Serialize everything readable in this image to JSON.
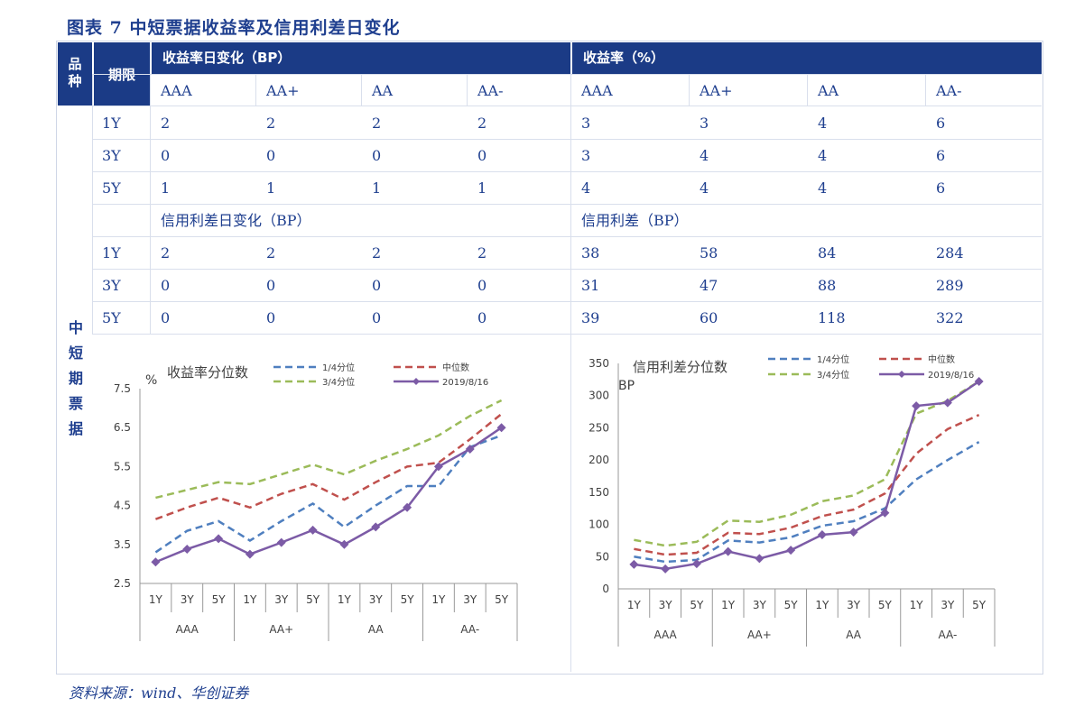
{
  "title": "图表 7   中短票据收益率及信用利差日变化",
  "header": {
    "col1": "品种",
    "col2": "期限",
    "group1": "收益率日变化（BP）",
    "group2": "收益率（%）",
    "ratings": [
      "AAA",
      "AA+",
      "AA",
      "AA-"
    ]
  },
  "row_label": "中短期票据",
  "section2": {
    "group1": "信用利差日变化（BP）",
    "group2": "信用利差（BP）"
  },
  "yield_rows": [
    {
      "term": "1Y",
      "change": [
        "2",
        "2",
        "2",
        "2"
      ],
      "yield": [
        "3",
        "3",
        "4",
        "6"
      ]
    },
    {
      "term": "3Y",
      "change": [
        "0",
        "0",
        "0",
        "0"
      ],
      "yield": [
        "3",
        "4",
        "4",
        "6"
      ]
    },
    {
      "term": "5Y",
      "change": [
        "1",
        "1",
        "1",
        "1"
      ],
      "yield": [
        "4",
        "4",
        "4",
        "6"
      ]
    }
  ],
  "spread_rows": [
    {
      "term": "1Y",
      "change": [
        "2",
        "2",
        "2",
        "2"
      ],
      "spread": [
        "38",
        "58",
        "84",
        "284"
      ]
    },
    {
      "term": "3Y",
      "change": [
        "0",
        "0",
        "0",
        "0"
      ],
      "spread": [
        "31",
        "47",
        "88",
        "289"
      ]
    },
    {
      "term": "5Y",
      "change": [
        "0",
        "0",
        "0",
        "0"
      ],
      "spread": [
        "39",
        "60",
        "118",
        "322"
      ]
    }
  ],
  "source": "资料来源：wind、华创证券",
  "chart_data": [
    {
      "type": "line",
      "title": "收益率分位数",
      "ylabel": "%",
      "ylim": [
        2.5,
        7.5
      ],
      "yticks": [
        "2.5",
        "3.5",
        "4.5",
        "5.5",
        "6.5",
        "7.5"
      ],
      "categories": [
        "1Y",
        "3Y",
        "5Y",
        "1Y",
        "3Y",
        "5Y",
        "1Y",
        "3Y",
        "5Y",
        "1Y",
        "3Y",
        "5Y"
      ],
      "groups": [
        "AAA",
        "AA+",
        "AA",
        "AA-"
      ],
      "legend": {
        "placement": "top-right"
      },
      "series": [
        {
          "name": "1/4分位",
          "color": "#4f7fbf",
          "dash": true,
          "values": [
            3.3,
            3.85,
            4.1,
            3.6,
            4.1,
            4.55,
            3.95,
            4.5,
            5.0,
            5.0,
            6.0,
            6.3
          ]
        },
        {
          "name": "中位数",
          "color": "#c0504d",
          "dash": true,
          "values": [
            4.15,
            4.45,
            4.7,
            4.45,
            4.8,
            5.05,
            4.65,
            5.1,
            5.5,
            5.6,
            6.2,
            6.85
          ]
        },
        {
          "name": "3/4分位",
          "color": "#9bbb59",
          "dash": true,
          "values": [
            4.7,
            4.9,
            5.1,
            5.05,
            5.3,
            5.55,
            5.3,
            5.65,
            5.95,
            6.3,
            6.8,
            7.2
          ]
        },
        {
          "name": "2019/8/16",
          "color": "#7c5ba6",
          "dash": false,
          "markers": true,
          "values": [
            3.05,
            3.38,
            3.65,
            3.25,
            3.55,
            3.87,
            3.5,
            3.95,
            4.45,
            5.5,
            5.95,
            6.5
          ]
        }
      ]
    },
    {
      "type": "line",
      "title": "信用利差分位数",
      "ylabel": "BP",
      "ylim": [
        0,
        350
      ],
      "yticks": [
        "0",
        "50",
        "100",
        "150",
        "200",
        "250",
        "300",
        "350"
      ],
      "categories": [
        "1Y",
        "3Y",
        "5Y",
        "1Y",
        "3Y",
        "5Y",
        "1Y",
        "3Y",
        "5Y",
        "1Y",
        "3Y",
        "5Y"
      ],
      "groups": [
        "AAA",
        "AA+",
        "AA",
        "AA-"
      ],
      "legend": {
        "placement": "top-right"
      },
      "series": [
        {
          "name": "1/4分位",
          "color": "#4f7fbf",
          "dash": true,
          "values": [
            50,
            42,
            45,
            75,
            72,
            80,
            98,
            105,
            125,
            170,
            200,
            228
          ]
        },
        {
          "name": "中位数",
          "color": "#c0504d",
          "dash": true,
          "values": [
            62,
            53,
            56,
            87,
            85,
            95,
            113,
            123,
            148,
            210,
            248,
            270
          ]
        },
        {
          "name": "3/4分位",
          "color": "#9bbb59",
          "dash": true,
          "values": [
            76,
            67,
            73,
            106,
            104,
            115,
            136,
            145,
            170,
            272,
            292,
            322
          ]
        },
        {
          "name": "2019/8/16",
          "color": "#7c5ba6",
          "dash": false,
          "markers": true,
          "values": [
            38,
            31,
            39,
            58,
            47,
            60,
            84,
            88,
            118,
            284,
            289,
            322
          ]
        }
      ]
    }
  ]
}
